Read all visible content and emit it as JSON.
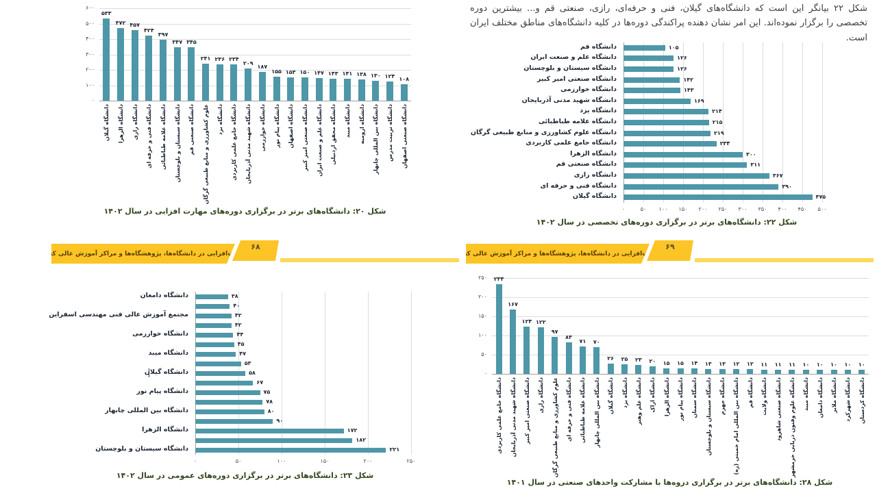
{
  "page": {
    "paragraph": "شکل ۲۲ بیانگر این است که دانشگاه‌های گیلان، فنی و حرفه‌ای، رازی، صنعتی قم و... بیشترین دوره تخصصی را برگزار نموده‌اند. این امر نشان دهنده پراکندگی دوره‌ها در کلیه دانشگاه‌های مناطق مختلف ایران است."
  },
  "banners": [
    {
      "title": "مهارت‌افزایی در دانشگاه‌ها، پژوهشگاه‌ها و مراکز آموزش عالی کشور",
      "page_number": "۶۸"
    },
    {
      "title": "مهارت‌افزایی در دانشگاه‌ها، پژوهشگاه‌ها و مراکز آموزش عالی کشور",
      "page_number": "۶۹"
    }
  ],
  "colors": {
    "bar_teal": "#4e97a8",
    "banner_yellow": "#fdc426",
    "banner_stripe_yellow": "#fbd95c",
    "caption_green": "#35461f",
    "gridline_gray": "#dcdcdc",
    "label_text": "#1c2430"
  },
  "chart_data": [
    {
      "id": "fig20",
      "type": "bar",
      "orientation": "vertical",
      "title": "شکل ۲۰: دانشگاه‌های برتر در برگزاری دوره‌های مهارت افزایی در سال ۱۴۰۲",
      "categories": [
        "دانشگاه گیلان",
        "دانشگاه الزهرا",
        "دانشگاه رازی",
        "دانشگاه فنی و حرفه ای",
        "دانشگاه علامه طباطبائی",
        "دانشگاه سیستان و بلوچستان",
        "دانشگاه صنعتی قم",
        "علوم کشاورزی و منابع طبیعی گرگان",
        "دانشگاه یزد",
        "دانشگاه جامع علمی کاربردی",
        "دانشگاه شهید مدنی آذربایجان",
        "دانشگاه خوارزمی",
        "دانشگاه پیام نور",
        "دانشگاه اصفهان",
        "دانشگاه صنعتی امیر کبیر",
        "دانشگاه علم و صنعت ایران",
        "دانشگاه محقق اردبیلی",
        "دانشگاه میبد",
        "دانشگاه ارومیه",
        "دانشگاه بین المللی چابهار",
        "دانشگاه تربیت مدرس",
        "دانشگاه صنعتی اصفهان"
      ],
      "values": [
        533,
        472,
        457,
        424,
        397,
        347,
        345,
        241,
        236,
        234,
        209,
        187,
        155,
        153,
        150,
        147,
        143,
        141,
        138,
        130,
        124,
        108
      ],
      "ylim": [
        0,
        600
      ],
      "ytick_step": 100,
      "grid": true,
      "value_labels": true,
      "digit_style": "persian"
    },
    {
      "id": "fig22",
      "type": "bar",
      "orientation": "horizontal",
      "title": "شکل ۲۲: دانشگاه‌های برتر در برگزاری دوره‌های تخصصی در سال ۱۴۰۲",
      "categories": [
        "دانشگاه قم",
        "دانشگاه علم و صنعت ایران",
        "دانشگاه سیستان و بلوچستان",
        "دانشگاه صنعتی امیر کبیر",
        "دانشگاه خوارزمی",
        "دانشگاه شهید مدنی آذربایجان",
        "دانشگاه یزد",
        "دانشگاه علامه طباطبائی",
        "دانشگاه علوم کشاورزی و منابع طبیعی گرگان",
        "دانشگاه جامع علمی کاربردی",
        "دانشگاه الزهرا",
        "دانشگاه صنعتی قم",
        "دانشگاه رازی",
        "دانشگاه فنی و حرفه ای",
        "دانشگاه گیلان"
      ],
      "values": [
        105,
        126,
        126,
        142,
        143,
        169,
        214,
        215,
        219,
        234,
        300,
        311,
        367,
        390,
        475
      ],
      "xlim": [
        0,
        500
      ],
      "xtick_step": 50,
      "grid": true,
      "value_labels": true,
      "digit_style": "persian"
    },
    {
      "id": "fig23",
      "type": "bar",
      "orientation": "horizontal",
      "title": "شکل ۲۳: دانشگاه‌های برتر در برگزاری دوره‌های عمومی در سال ۱۴۰۲",
      "categories": [
        "دانشگاه دامغان",
        "",
        "مجتمع آموزش عالی فنی مهندسی اسفراین",
        "",
        "دانشگاه خوارزمی",
        "",
        "دانشگاه میبد",
        "",
        "دانشگاه گیلان",
        "",
        "دانشگاه پیام نور",
        "",
        "دانشگاه بین المللی چابهار",
        "",
        "دانشگاه الزهرا",
        "",
        "دانشگاه سیستان و بلوچستان"
      ],
      "values": [
        38,
        40,
        42,
        42,
        44,
        45,
        47,
        53,
        58,
        67,
        75,
        78,
        80,
        90,
        172,
        182,
        221
      ],
      "xlim": [
        0,
        250
      ],
      "xtick_step": 50,
      "grid": true,
      "value_labels": true,
      "digit_style": "persian"
    },
    {
      "id": "fig28",
      "type": "bar",
      "orientation": "vertical",
      "title": "شکل ۲۸: دانشگاه‌های برتر در برگزاری دروه‌ها با مشارکت واحدهای صنعتی در سال ۱۴۰۱",
      "categories": [
        "دانشگاه جامع علمی کاربردی",
        "دانشگاه شهید مدنی آذربایجان",
        "دانشگاه صنعتی امیر کبیر",
        "دانشگاه رازی",
        "علوم کشاورزی و منابع طبیعی گرگان",
        "دانشگاه فنی و حرفه ای",
        "دانشگاه علامه طباطبائی",
        "دانشگاه بین المللی چابهار",
        "دانشگاه گیلان",
        "دانشگاه یزد",
        "دانشگاه علم وهنر",
        "دانشگاه اراک",
        "دانشگاه الزهرا",
        "دانشگاه پیام نور",
        "دانشگاه سمنان",
        "دانشگاه سیستان و بلوچستان",
        "دانشگاه جهرم",
        "دانشگاه بین المللی امام خمینی (ره)",
        "دانشگاه قم",
        "دانشگاه ولایت",
        "دانشگاه صنعتی شاهرود",
        "دانشگاه علوم وفنون دریایی خرمشهر",
        "دانشگاه میبد",
        "دانشگاه دامغان",
        "دانشگاه ملایر",
        "دانشگاه شهرکرد",
        "دانشگاه کردستان"
      ],
      "values": [
        234,
        167,
        124,
        122,
        97,
        83,
        71,
        70,
        26,
        25,
        23,
        20,
        15,
        15,
        14,
        13,
        13,
        12,
        12,
        11,
        11,
        11,
        10,
        10,
        10,
        10,
        10
      ],
      "ylim": [
        0,
        250
      ],
      "ytick_step": 50,
      "grid": true,
      "value_labels": true,
      "digit_style": "persian"
    }
  ]
}
